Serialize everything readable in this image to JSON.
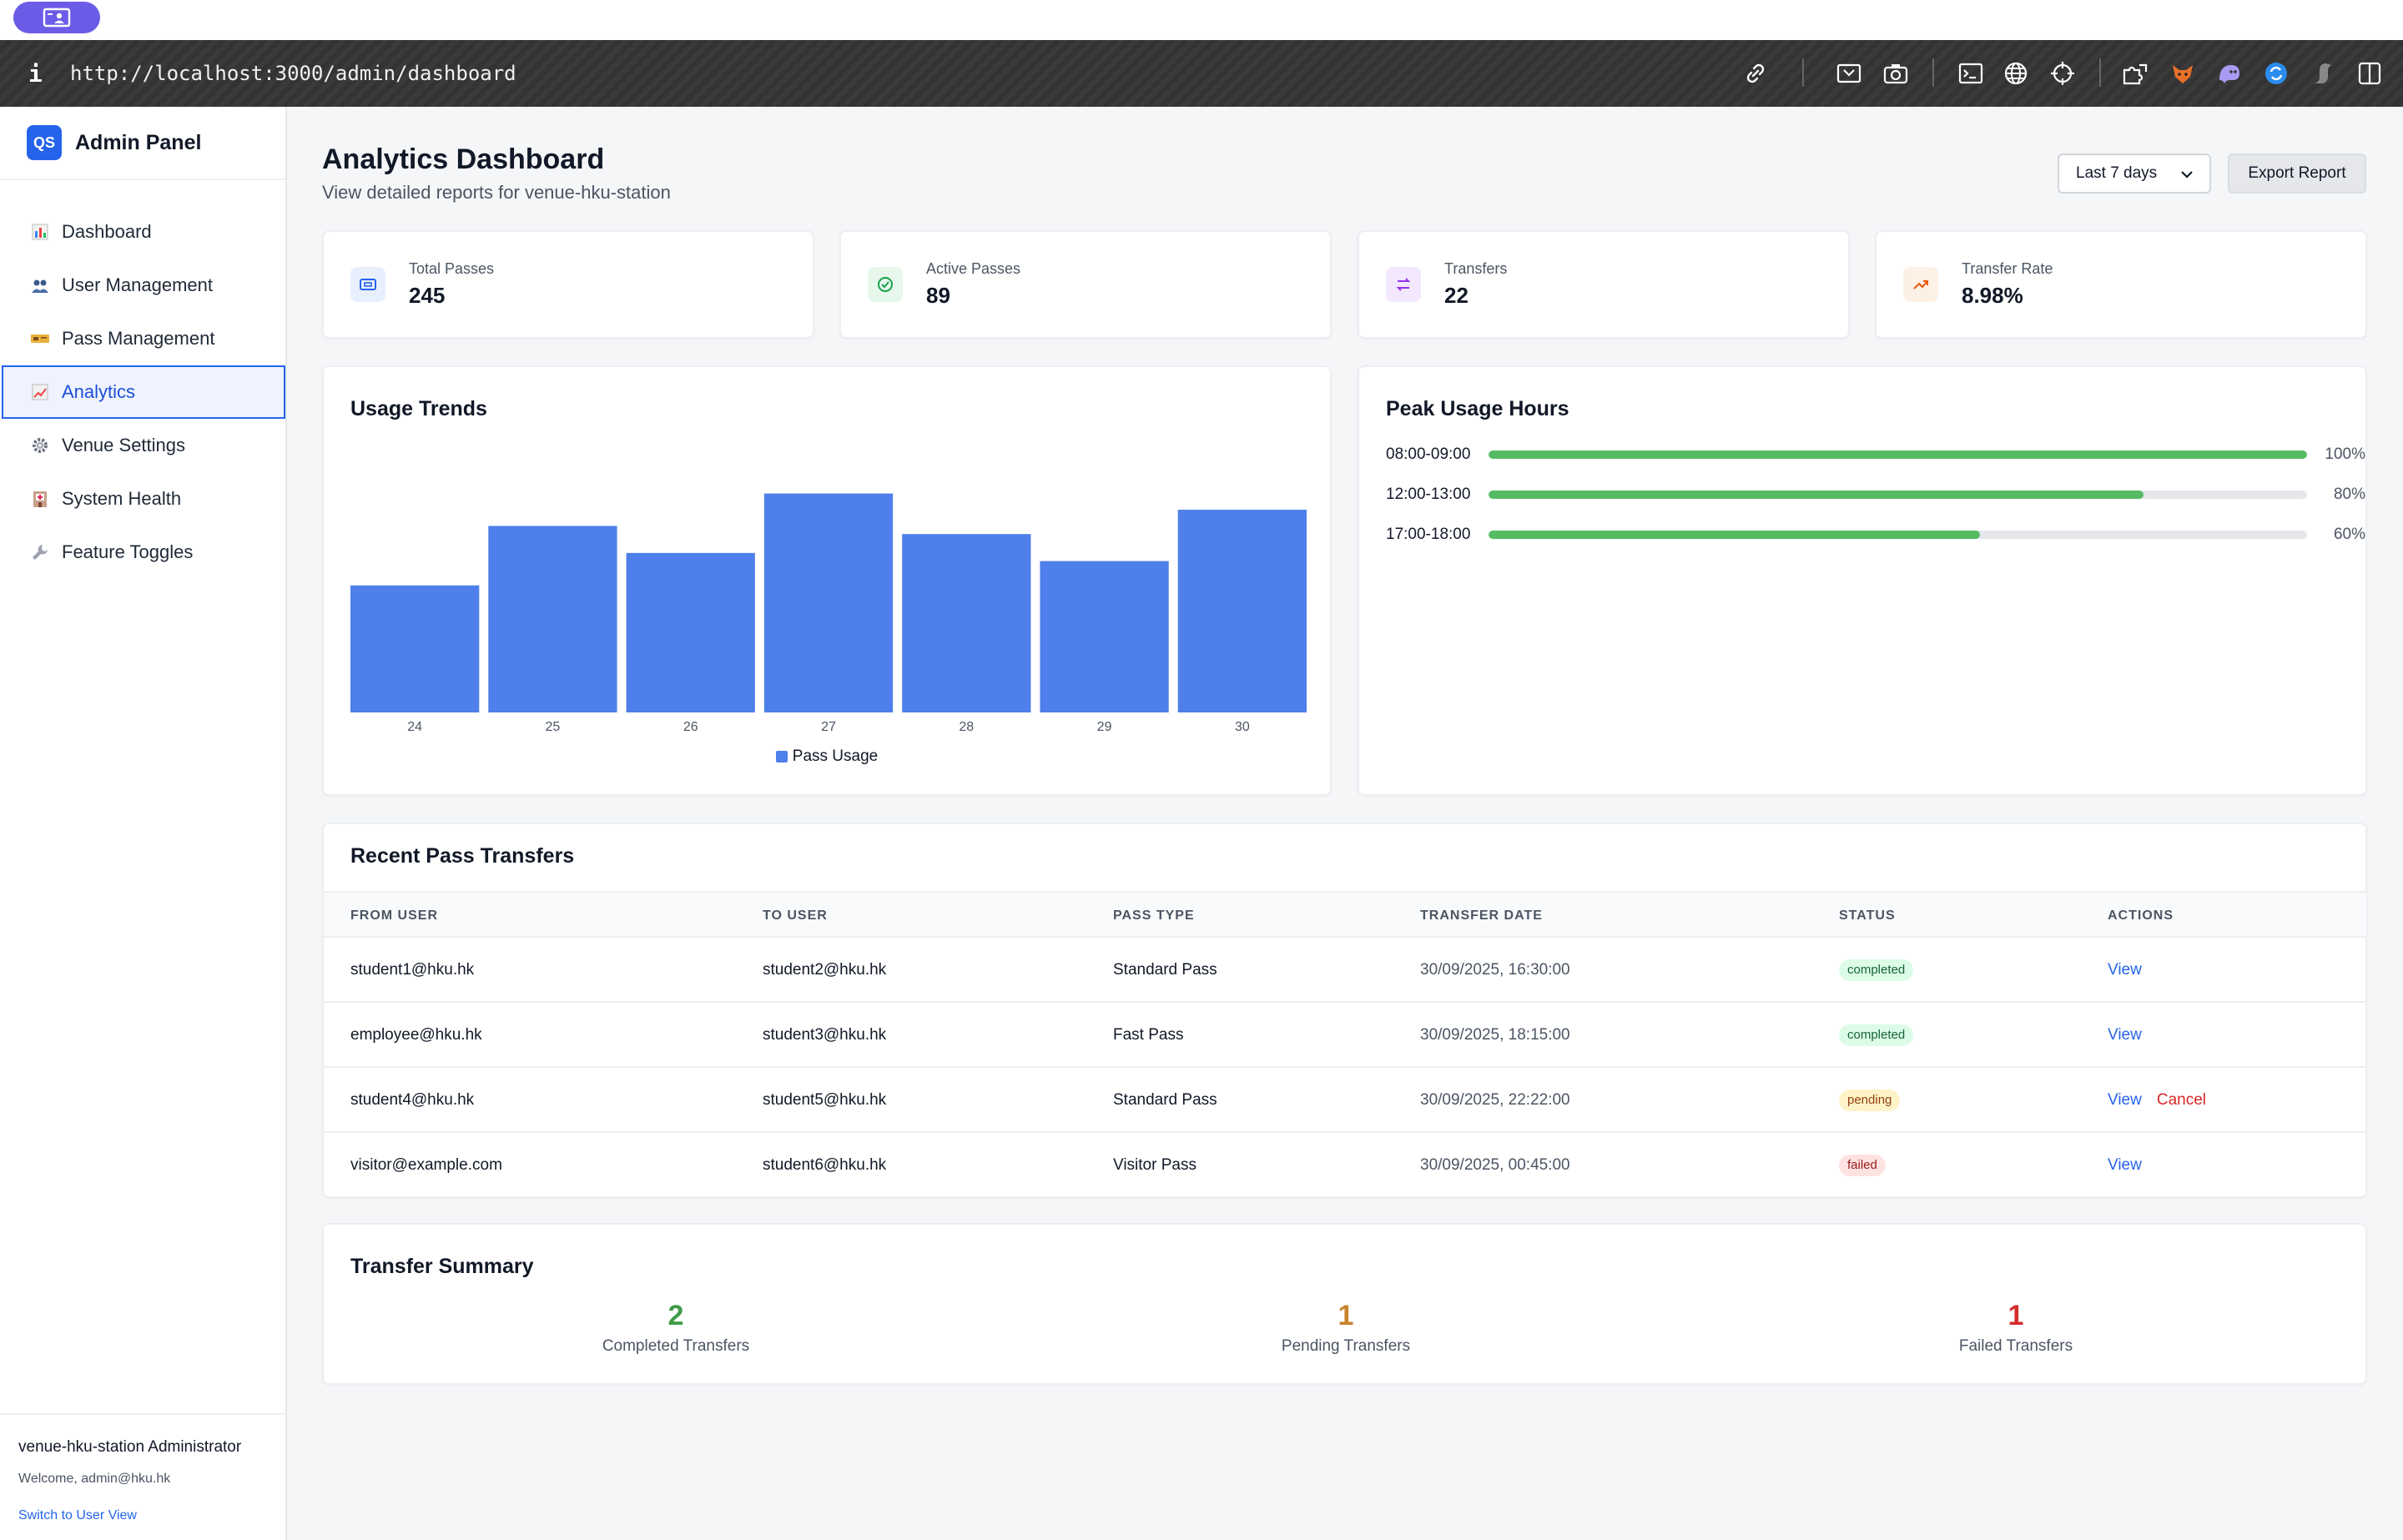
{
  "browser": {
    "url": "http://localhost:3000/admin/dashboard",
    "info_glyph": "i"
  },
  "sidebar": {
    "brand_logo": "QS",
    "brand_name": "Admin Panel",
    "items": [
      {
        "label": "Dashboard",
        "icon": "bar-chart-icon",
        "active": false
      },
      {
        "label": "User Management",
        "icon": "users-icon",
        "active": false
      },
      {
        "label": "Pass Management",
        "icon": "ticket-icon",
        "active": false
      },
      {
        "label": "Analytics",
        "icon": "trend-chart-icon",
        "active": true
      },
      {
        "label": "Venue Settings",
        "icon": "gear-icon",
        "active": false
      },
      {
        "label": "System Health",
        "icon": "hospital-icon",
        "active": false
      },
      {
        "label": "Feature Toggles",
        "icon": "wrench-icon",
        "active": false
      }
    ],
    "footer": {
      "role": "venue-hku-station Administrator",
      "welcome": "Welcome, admin@hku.hk",
      "switch_link": "Switch to User View"
    }
  },
  "header": {
    "title": "Analytics Dashboard",
    "subtitle": "View detailed reports for venue-hku-station",
    "range_select": "Last 7 days",
    "export_button": "Export Report"
  },
  "stats": [
    {
      "label": "Total Passes",
      "value": "245",
      "icon": "ticket-icon",
      "color": "#2563eb",
      "bg": "#e8effd"
    },
    {
      "label": "Active Passes",
      "value": "89",
      "icon": "check-circle-icon",
      "color": "#16a34a",
      "bg": "#e7f7ec"
    },
    {
      "label": "Transfers",
      "value": "22",
      "icon": "swap-arrows-icon",
      "color": "#9333ea",
      "bg": "#f3e8fd"
    },
    {
      "label": "Transfer Rate",
      "value": "8.98%",
      "icon": "trending-up-icon",
      "color": "#ea580c",
      "bg": "#fdf0e4"
    }
  ],
  "usage_trends": {
    "title": "Usage Trends",
    "legend": "Pass Usage"
  },
  "chart_data": {
    "type": "bar",
    "categories": [
      "24",
      "25",
      "26",
      "27",
      "28",
      "29",
      "30"
    ],
    "series": [
      {
        "name": "Pass Usage",
        "values": [
          47,
          69,
          59,
          81,
          66,
          56,
          75
        ],
        "color": "#4e7fea"
      }
    ],
    "title": "Usage Trends",
    "xlabel": "",
    "ylabel": "",
    "ylim": [
      0,
      100
    ],
    "grid": false,
    "legend": "bottom"
  },
  "peak_hours": {
    "title": "Peak Usage Hours",
    "rows": [
      {
        "label": "08:00-09:00",
        "value": "100%",
        "fraction": 1.0
      },
      {
        "label": "12:00-13:00",
        "value": "80%",
        "fraction": 0.8
      },
      {
        "label": "17:00-18:00",
        "value": "60%",
        "fraction": 0.6
      }
    ]
  },
  "transfers": {
    "title": "Recent Pass Transfers",
    "headers": [
      "FROM USER",
      "TO USER",
      "PASS TYPE",
      "TRANSFER DATE",
      "STATUS",
      "ACTIONS"
    ],
    "rows": [
      {
        "from": "student1@hku.hk",
        "to": "student2@hku.hk",
        "type": "Standard Pass",
        "date": "30/09/2025, 16:30:00",
        "status": "completed",
        "view": "View",
        "cancel": ""
      },
      {
        "from": "employee@hku.hk",
        "to": "student3@hku.hk",
        "type": "Fast Pass",
        "date": "30/09/2025, 18:15:00",
        "status": "completed",
        "view": "View",
        "cancel": ""
      },
      {
        "from": "student4@hku.hk",
        "to": "student5@hku.hk",
        "type": "Standard Pass",
        "date": "30/09/2025, 22:22:00",
        "status": "pending",
        "view": "View",
        "cancel": "Cancel"
      },
      {
        "from": "visitor@example.com",
        "to": "student6@hku.hk",
        "type": "Visitor Pass",
        "date": "30/09/2025, 00:45:00",
        "status": "failed",
        "view": "View",
        "cancel": ""
      }
    ]
  },
  "summary": {
    "title": "Transfer Summary",
    "items": [
      {
        "count": "2",
        "label": "Completed Transfers",
        "color": "#3f9b47"
      },
      {
        "count": "1",
        "label": "Pending Transfers",
        "color": "#c9822b"
      },
      {
        "count": "1",
        "label": "Failed Transfers",
        "color": "#d42b2b"
      }
    ]
  }
}
